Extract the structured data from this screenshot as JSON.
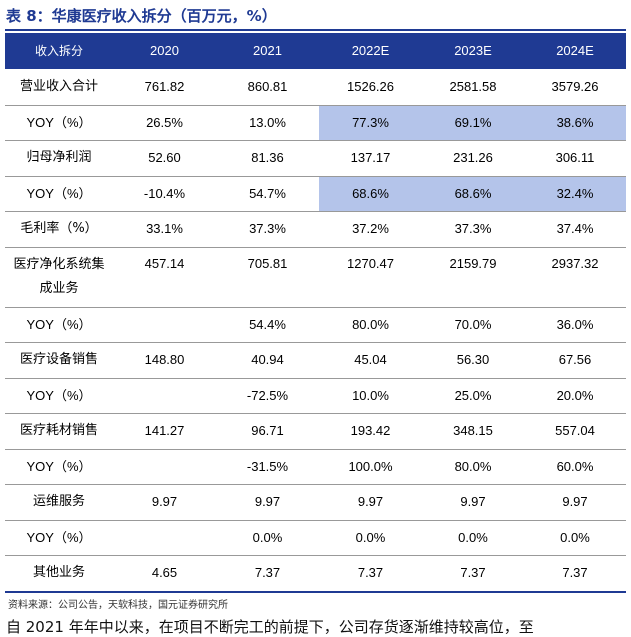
{
  "table_title": "表 8：华康医疗收入拆分（百万元，%）",
  "header": {
    "label": "收入拆分",
    "years": [
      "2020",
      "2021",
      "2022E",
      "2023E",
      "2024E"
    ]
  },
  "rows": [
    {
      "label": "营业收入合计",
      "values": [
        "761.82",
        "860.81",
        "1526.26",
        "2581.58",
        "3579.26"
      ],
      "highlight": [
        false,
        false,
        false,
        false,
        false
      ]
    },
    {
      "label": "YOY（%）",
      "values": [
        "26.5%",
        "13.0%",
        "77.3%",
        "69.1%",
        "38.6%"
      ],
      "highlight": [
        false,
        false,
        true,
        true,
        true
      ]
    },
    {
      "label": "归母净利润",
      "values": [
        "52.60",
        "81.36",
        "137.17",
        "231.26",
        "306.11"
      ],
      "highlight": [
        false,
        false,
        false,
        false,
        false
      ]
    },
    {
      "label": "YOY（%）",
      "values": [
        "-10.4%",
        "54.7%",
        "68.6%",
        "68.6%",
        "32.4%"
      ],
      "highlight": [
        false,
        false,
        true,
        true,
        true
      ]
    },
    {
      "label": "毛利率（%）",
      "values": [
        "33.1%",
        "37.3%",
        "37.2%",
        "37.3%",
        "37.4%"
      ],
      "highlight": [
        false,
        false,
        false,
        false,
        false
      ]
    },
    {
      "label": "医疗净化系统集成业务",
      "label_line1": "医疗净化系统集",
      "label_line2": "成业务",
      "values": [
        "457.14",
        "705.81",
        "1270.47",
        "2159.79",
        "2937.32"
      ],
      "highlight": [
        false,
        false,
        false,
        false,
        false
      ]
    },
    {
      "label": "YOY（%）",
      "values": [
        "",
        "54.4%",
        "80.0%",
        "70.0%",
        "36.0%"
      ],
      "highlight": [
        false,
        false,
        false,
        false,
        false
      ]
    },
    {
      "label": "医疗设备销售",
      "values": [
        "148.80",
        "40.94",
        "45.04",
        "56.30",
        "67.56"
      ],
      "highlight": [
        false,
        false,
        false,
        false,
        false
      ]
    },
    {
      "label": "YOY（%）",
      "values": [
        "",
        "-72.5%",
        "10.0%",
        "25.0%",
        "20.0%"
      ],
      "highlight": [
        false,
        false,
        false,
        false,
        false
      ]
    },
    {
      "label": "医疗耗材销售",
      "values": [
        "141.27",
        "96.71",
        "193.42",
        "348.15",
        "557.04"
      ],
      "highlight": [
        false,
        false,
        false,
        false,
        false
      ]
    },
    {
      "label": "YOY（%）",
      "values": [
        "",
        "-31.5%",
        "100.0%",
        "80.0%",
        "60.0%"
      ],
      "highlight": [
        false,
        false,
        false,
        false,
        false
      ]
    },
    {
      "label": "运维服务",
      "values": [
        "9.97",
        "9.97",
        "9.97",
        "9.97",
        "9.97"
      ],
      "highlight": [
        false,
        false,
        false,
        false,
        false
      ]
    },
    {
      "label": "YOY（%）",
      "values": [
        "",
        "0.0%",
        "0.0%",
        "0.0%",
        "0.0%"
      ],
      "highlight": [
        false,
        false,
        false,
        false,
        false
      ]
    },
    {
      "label": "其他业务",
      "values": [
        "4.65",
        "7.37",
        "7.37",
        "7.37",
        "7.37"
      ],
      "highlight": [
        false,
        false,
        false,
        false,
        false
      ]
    }
  ],
  "source_note": "资料来源：公司公告，天软科技，国元证券研究所",
  "cutoff_text": "自 2021 年年中以来，在项目不断完工的前提下，公司存货逐渐维持较高位，至"
}
